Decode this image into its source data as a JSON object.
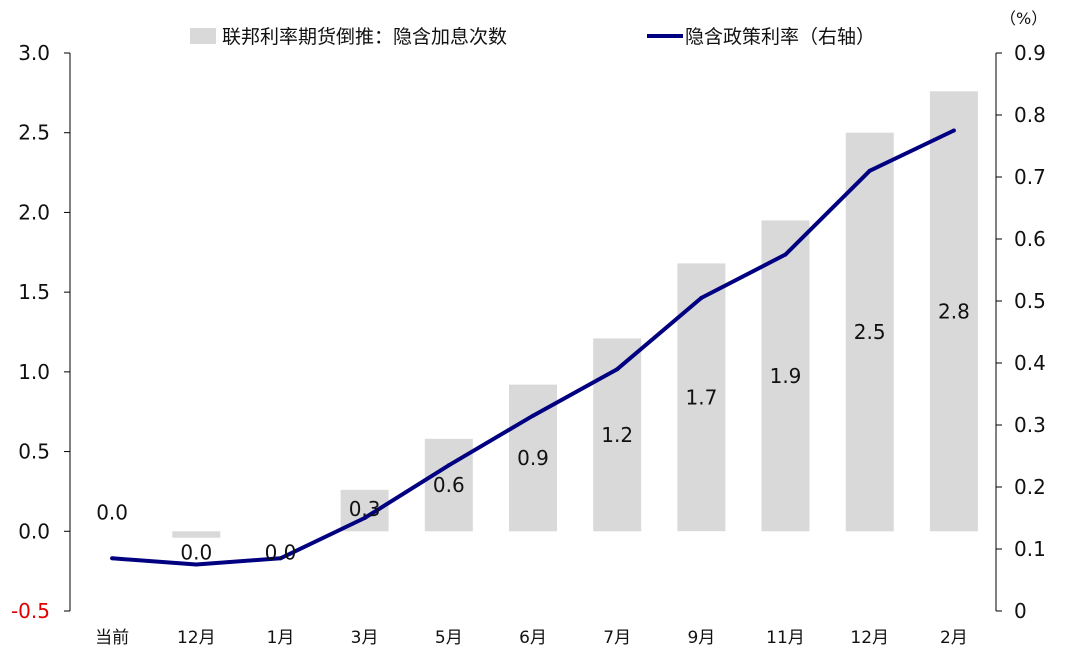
{
  "chart_data": {
    "type": "bar+line",
    "categories": [
      "当前",
      "12月",
      "1月",
      "3月",
      "5月",
      "6月",
      "7月",
      "9月",
      "11月",
      "12月",
      "2月"
    ],
    "series": [
      {
        "name": "联邦利率期货倒推：隐含加息次数",
        "type": "bar",
        "axis": "left",
        "color": "#d9d9d9",
        "values": [
          0.0,
          -0.04,
          0.0,
          0.26,
          0.58,
          0.92,
          1.21,
          1.68,
          1.95,
          2.5,
          2.76
        ],
        "data_labels": [
          "0.0",
          "0.0",
          "0.0",
          "0.3",
          "0.6",
          "0.9",
          "1.2",
          "1.7",
          "1.9",
          "2.5",
          "2.8"
        ]
      },
      {
        "name": "隐含政策利率（右轴）",
        "type": "line",
        "axis": "right",
        "color": "#000080",
        "values": [
          0.085,
          0.075,
          0.085,
          0.15,
          0.235,
          0.315,
          0.39,
          0.505,
          0.575,
          0.71,
          0.775
        ]
      }
    ],
    "y_left": {
      "min": -0.5,
      "max": 3.0,
      "ticks": [
        "-0.5",
        "0.0",
        "0.5",
        "1.0",
        "1.5",
        "2.0",
        "2.5",
        "3.0"
      ]
    },
    "y_right": {
      "min": 0.0,
      "max": 0.9,
      "ticks": [
        "0",
        "0.1",
        "0.2",
        "0.3",
        "0.4",
        "0.5",
        "0.6",
        "0.7",
        "0.8",
        "0.9"
      ],
      "unit": "（%）"
    },
    "negative_tick_color": "#e00000",
    "grid": false,
    "legend_position": "top"
  }
}
